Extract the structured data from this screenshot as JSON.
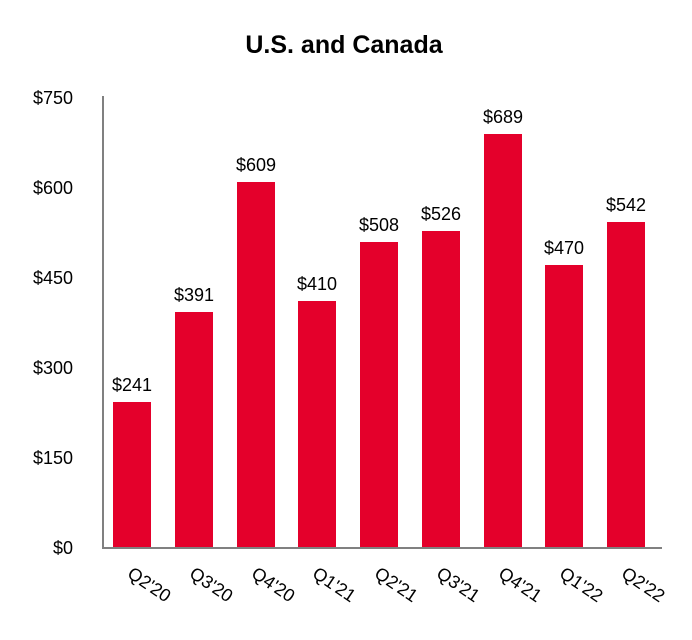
{
  "chart_data": {
    "type": "bar",
    "title": "U.S. and Canada",
    "categories": [
      "Q2'20",
      "Q3'20",
      "Q4'20",
      "Q1'21",
      "Q2'21",
      "Q3'21",
      "Q4'21",
      "Q1'22",
      "Q2'22"
    ],
    "values": [
      241,
      391,
      609,
      410,
      508,
      526,
      689,
      470,
      542
    ],
    "bar_labels": [
      "$241",
      "$391",
      "$609",
      "$410",
      "$508",
      "$526",
      "$689",
      "$470",
      "$542"
    ],
    "yticks": [
      {
        "label": "$750",
        "value": 750
      },
      {
        "label": "$600",
        "value": 600
      },
      {
        "label": "$450",
        "value": 450
      },
      {
        "label": "$300",
        "value": 300
      },
      {
        "label": "$150",
        "value": 150
      },
      {
        "label": "$0",
        "value": 0
      }
    ],
    "ylim": [
      0,
      750
    ],
    "xlabel": "",
    "ylabel": "",
    "grid": false,
    "legend": "none",
    "bar_color": "#E4002B",
    "axis_color": "#808080",
    "text_color": "#000000",
    "background_color": "#FFFFFF"
  }
}
